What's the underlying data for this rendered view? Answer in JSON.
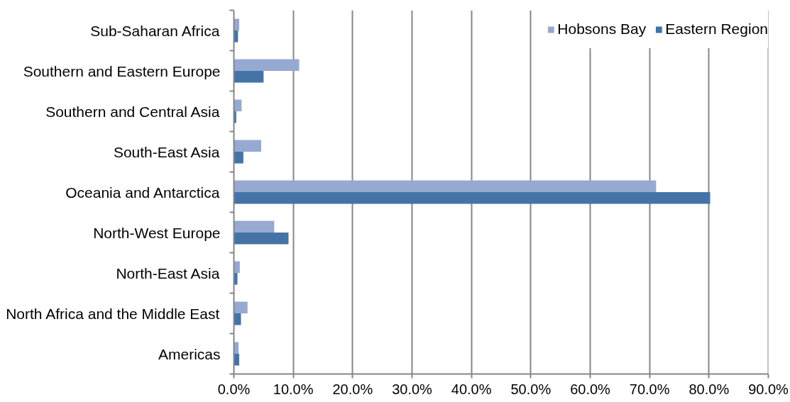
{
  "chart_data": {
    "type": "bar",
    "orientation": "horizontal",
    "categories": [
      "Sub-Saharan Africa",
      "Southern and Eastern Europe",
      "Southern and Central Asia",
      "South-East Asia",
      "Oceania and Antarctica",
      "North-West Europe",
      "North-East Asia",
      "North Africa and the Middle East",
      "Americas"
    ],
    "series": [
      {
        "name": "Hobsons Bay",
        "color": "#95a9d1",
        "values": [
          0.9,
          11.0,
          1.3,
          4.6,
          71.1,
          6.8,
          1.0,
          2.3,
          0.8
        ]
      },
      {
        "name": "Eastern Region",
        "color": "#4473a8",
        "values": [
          0.7,
          5.0,
          0.4,
          1.6,
          80.2,
          9.2,
          0.6,
          1.2,
          0.9
        ]
      }
    ],
    "xlim": [
      0,
      90
    ],
    "xticks": [
      {
        "value": 0,
        "label": "0.0%"
      },
      {
        "value": 10,
        "label": "10.0%"
      },
      {
        "value": 20,
        "label": "20.0%"
      },
      {
        "value": 30,
        "label": "30.0%"
      },
      {
        "value": 40,
        "label": "40.0%"
      },
      {
        "value": 50,
        "label": "50.0%"
      },
      {
        "value": 60,
        "label": "60.0%"
      },
      {
        "value": 70,
        "label": "70.0%"
      },
      {
        "value": 80,
        "label": "80.0%"
      },
      {
        "value": 90,
        "label": "90.0%"
      }
    ],
    "grid": "x",
    "legend": "top right"
  }
}
